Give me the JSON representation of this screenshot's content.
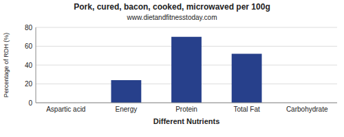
{
  "chart_data": {
    "type": "bar",
    "title": "Pork, cured, bacon, cooked, microwaved per 100g",
    "subtitle": "www.dietandfitnesstoday.com",
    "xlabel": "Different Nutrients",
    "ylabel": "Percentage of RDH (%)",
    "categories": [
      "Aspartic acid",
      "Energy",
      "Protein",
      "Total Fat",
      "Carbohydrate"
    ],
    "values": [
      0,
      24,
      70,
      52,
      0
    ],
    "color": "#27408b",
    "ylim": [
      0,
      80
    ],
    "yticks": [
      0,
      20,
      40,
      60,
      80
    ],
    "grid": true
  }
}
